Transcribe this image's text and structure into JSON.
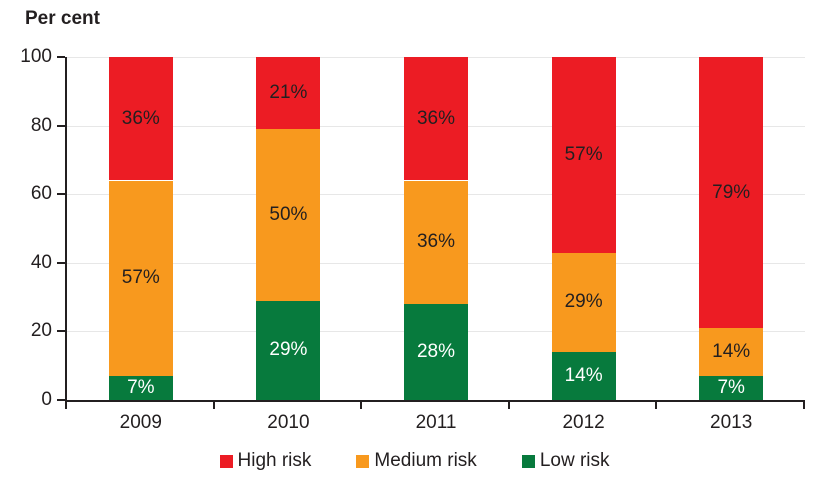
{
  "chart_data": {
    "type": "bar",
    "stacked": true,
    "title": "Per cent",
    "categories": [
      "2009",
      "2010",
      "2011",
      "2012",
      "2013"
    ],
    "series": [
      {
        "name": "High risk",
        "color": "#EC1C24",
        "label_color": "#231F20",
        "values": [
          36,
          21,
          36,
          57,
          79
        ]
      },
      {
        "name": "Medium risk",
        "color": "#F8991E",
        "label_color": "#231F20",
        "values": [
          57,
          50,
          36,
          29,
          14
        ]
      },
      {
        "name": "Low risk",
        "color": "#077A3D",
        "label_color": "#FFFFFF",
        "values": [
          7,
          29,
          28,
          14,
          7
        ]
      }
    ],
    "stack_order_bottom_to_top": [
      "Low risk",
      "Medium risk",
      "High risk"
    ],
    "value_label_format": "{v}%",
    "ylim": [
      0,
      100
    ],
    "yticks": [
      0,
      20,
      40,
      60,
      80,
      100
    ],
    "grid": "horizontal",
    "legend_position": "bottom-center"
  },
  "legend": {
    "items": [
      {
        "label": "High risk",
        "color": "#EC1C24"
      },
      {
        "label": "Medium risk",
        "color": "#F8991E"
      },
      {
        "label": "Low risk",
        "color": "#077A3D"
      }
    ]
  },
  "axis": {
    "color": "#231F20",
    "grid_color": "#E7E7E7",
    "text_color": "#231F20"
  }
}
